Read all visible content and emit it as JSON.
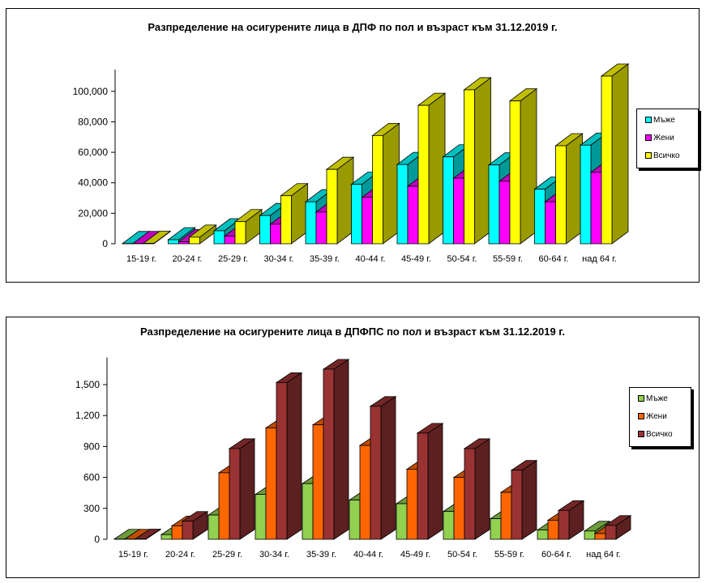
{
  "chart_data": [
    {
      "type": "bar",
      "title": "Разпределение на осигурените  лица в ДПФ по пол и възраст  към  31.12.2019  г.",
      "xlabel": "",
      "ylabel": "",
      "ylim": [
        0,
        110000
      ],
      "yticks": [
        0,
        20000,
        40000,
        60000,
        80000,
        100000
      ],
      "ytick_labels": [
        "0",
        "20,000",
        "40,000",
        "60,000",
        "80,000",
        "100,000"
      ],
      "categories": [
        "15-19 г.",
        "20-24 г.",
        "25-29 г.",
        "30-34 г.",
        "35-39 г.",
        "40-44 г.",
        "45-49 г.",
        "50-54 г.",
        "55-59 г.",
        "60-64 г.",
        "над 64 г."
      ],
      "legend_position": "right",
      "series": [
        {
          "name": "Мъже",
          "color": "#00FFFF",
          "side": "#009999",
          "values": [
            100,
            2600,
            8500,
            18500,
            27500,
            39000,
            52000,
            57000,
            51700,
            35800,
            64700
          ]
        },
        {
          "name": "Жени",
          "color": "#FF00FF",
          "side": "#990099",
          "values": [
            150,
            1300,
            5000,
            12800,
            20800,
            30400,
            37700,
            43000,
            41000,
            27500,
            46800
          ]
        },
        {
          "name": "Всичко",
          "color": "#FFFF00",
          "side": "#999900",
          "values": [
            250,
            4300,
            14500,
            31500,
            48800,
            71000,
            90800,
            101000,
            93700,
            64300,
            110000
          ]
        }
      ]
    },
    {
      "type": "bar",
      "title": "Разпределение на осигурените  лица в ДПФПС по пол и възраст  към  31.12.2019  г.",
      "xlabel": "",
      "ylabel": "",
      "ylim": [
        0,
        1700
      ],
      "yticks": [
        0,
        300,
        600,
        900,
        1200,
        1500
      ],
      "ytick_labels": [
        "0",
        "300",
        "600",
        "900",
        "1,200",
        "1,500"
      ],
      "categories": [
        "15-19 г.",
        "20-24 г.",
        "25-29 г.",
        "30-34 г.",
        "35-39 г.",
        "40-44 г.",
        "45-49 г.",
        "50-54 г.",
        "55-59 г.",
        "60-64 г.",
        "над 64 г."
      ],
      "legend_position": "right",
      "series": [
        {
          "name": "Мъже",
          "color": "#92D050",
          "side": "#5E8A2E",
          "values": [
            2,
            45,
            235,
            435,
            540,
            380,
            345,
            270,
            200,
            90,
            80
          ]
        },
        {
          "name": "Жени",
          "color": "#FF6600",
          "side": "#B04400",
          "values": [
            2,
            130,
            645,
            1080,
            1110,
            910,
            680,
            600,
            455,
            185,
            55
          ]
        },
        {
          "name": "Всичко",
          "color": "#993333",
          "side": "#5C2020",
          "values": [
            4,
            175,
            880,
            1520,
            1650,
            1290,
            1030,
            880,
            670,
            280,
            135
          ]
        }
      ]
    }
  ]
}
